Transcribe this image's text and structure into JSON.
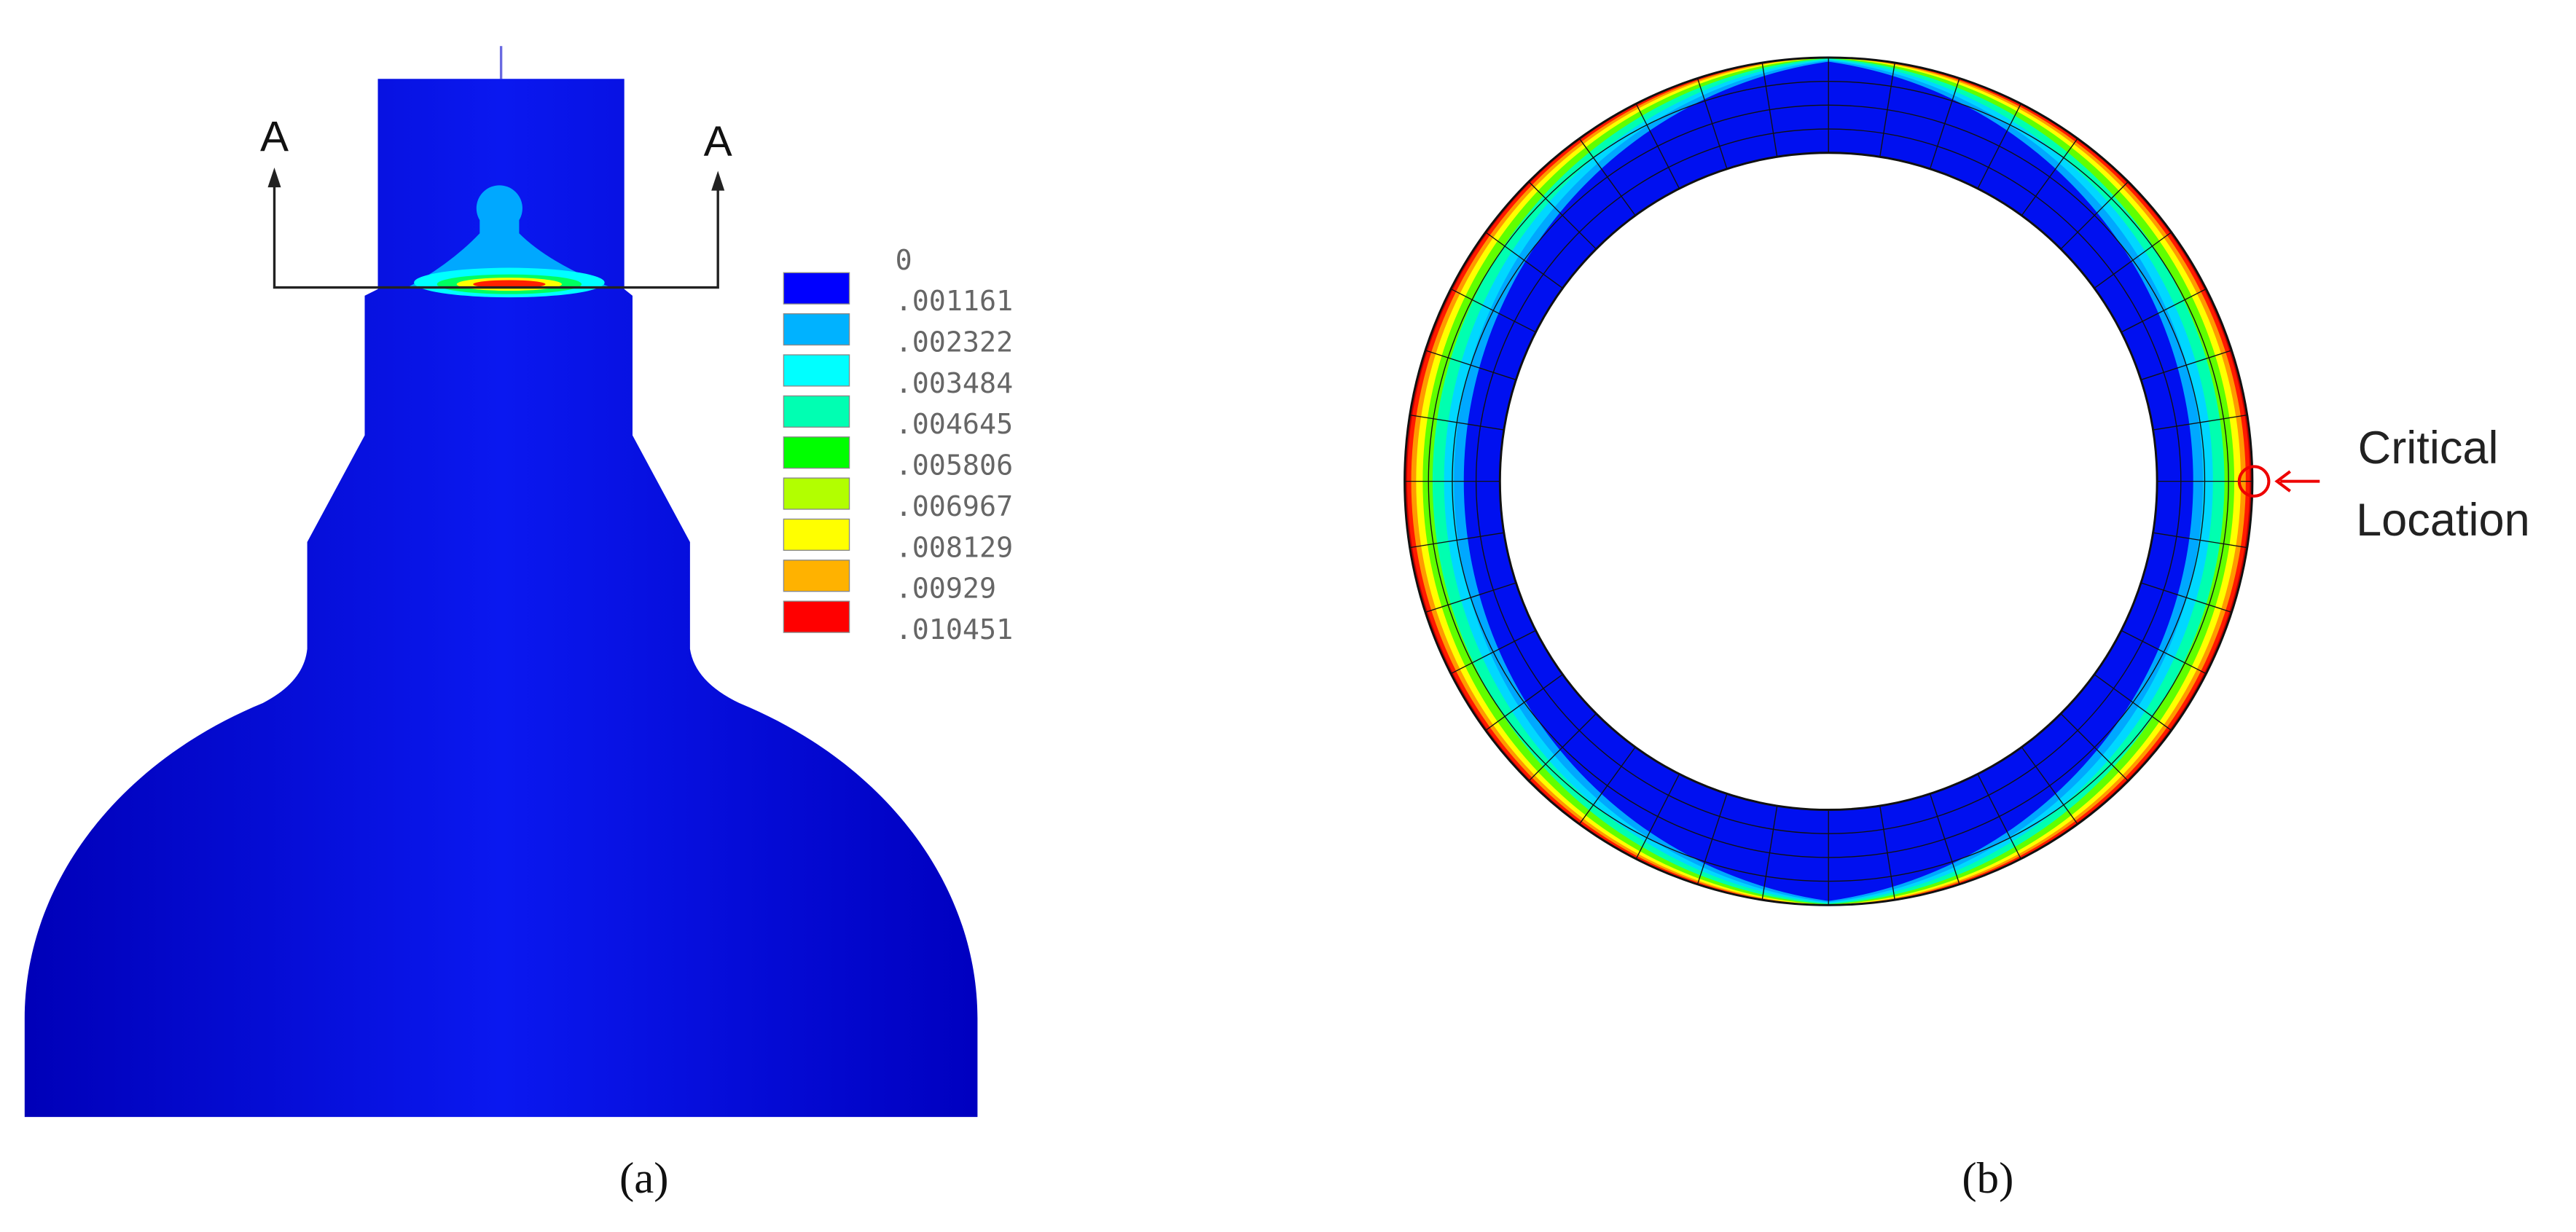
{
  "panel_a": {
    "section_labels": [
      "A",
      "A"
    ],
    "legend_labels": [
      "0",
      ".001161",
      ".002322",
      ".003484",
      ".004645",
      ".005806",
      ".006967",
      ".008129",
      ".00929",
      ".010451"
    ],
    "caption": "(a)"
  },
  "panel_b": {
    "annotation": [
      "Critical",
      "Location"
    ],
    "caption": "(b)"
  }
}
